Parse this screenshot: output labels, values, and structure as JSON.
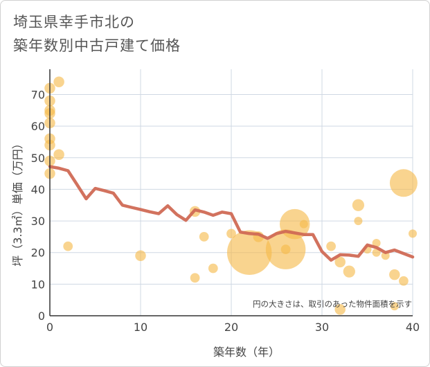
{
  "chart_data": {
    "type": "scatter",
    "title_lines": [
      "埼玉県幸手市北の",
      "築年数別中古戸建て価格"
    ],
    "xlabel": "築年数（年）",
    "ylabel": "坪（3.3㎡）単価（万円）",
    "xlim": [
      0,
      40
    ],
    "ylim": [
      0,
      78
    ],
    "xticks": [
      0,
      10,
      20,
      30,
      40
    ],
    "yticks": [
      0,
      10,
      20,
      30,
      40,
      50,
      60,
      70
    ],
    "grid": true,
    "annotation": "円の大きさは、取引のあった物件面積を示す",
    "colors": {
      "bubble": "#f5b94a",
      "line": "#d06a55",
      "grid": "#cfd8e3"
    },
    "scatter_points": [
      {
        "x": 0,
        "y": 72,
        "size": 3
      },
      {
        "x": 0,
        "y": 68,
        "size": 3
      },
      {
        "x": 0,
        "y": 65,
        "size": 3
      },
      {
        "x": 0,
        "y": 64,
        "size": 3
      },
      {
        "x": 0,
        "y": 61,
        "size": 3
      },
      {
        "x": 0,
        "y": 56,
        "size": 3
      },
      {
        "x": 0,
        "y": 54,
        "size": 3
      },
      {
        "x": 0,
        "y": 49,
        "size": 3
      },
      {
        "x": 0,
        "y": 45,
        "size": 3
      },
      {
        "x": 1,
        "y": 74,
        "size": 3
      },
      {
        "x": 1,
        "y": 51,
        "size": 3
      },
      {
        "x": 2,
        "y": 22,
        "size": 2.5
      },
      {
        "x": 10,
        "y": 19,
        "size": 3
      },
      {
        "x": 16,
        "y": 33,
        "size": 3
      },
      {
        "x": 16,
        "y": 12,
        "size": 2.5
      },
      {
        "x": 17,
        "y": 25,
        "size": 2.5
      },
      {
        "x": 18,
        "y": 15,
        "size": 2.5
      },
      {
        "x": 20,
        "y": 26,
        "size": 2.5
      },
      {
        "x": 22,
        "y": 20,
        "size": 17
      },
      {
        "x": 23,
        "y": 25,
        "size": 3
      },
      {
        "x": 26,
        "y": 21,
        "size": 15
      },
      {
        "x": 26,
        "y": 21,
        "size": 2.5
      },
      {
        "x": 27,
        "y": 29,
        "size": 11
      },
      {
        "x": 28,
        "y": 29,
        "size": 2
      },
      {
        "x": 31,
        "y": 22,
        "size": 2.5
      },
      {
        "x": 32,
        "y": 17,
        "size": 3
      },
      {
        "x": 32,
        "y": 2,
        "size": 3
      },
      {
        "x": 33,
        "y": 14,
        "size": 3.5
      },
      {
        "x": 34,
        "y": 35,
        "size": 3.5
      },
      {
        "x": 34,
        "y": 30,
        "size": 2
      },
      {
        "x": 35,
        "y": 21,
        "size": 2
      },
      {
        "x": 36,
        "y": 23,
        "size": 2
      },
      {
        "x": 36,
        "y": 20,
        "size": 2
      },
      {
        "x": 37,
        "y": 19,
        "size": 2
      },
      {
        "x": 38,
        "y": 13,
        "size": 3
      },
      {
        "x": 38,
        "y": 3,
        "size": 2
      },
      {
        "x": 39,
        "y": 42,
        "size": 10
      },
      {
        "x": 39,
        "y": 11,
        "size": 2.5
      },
      {
        "x": 40,
        "y": 26,
        "size": 2
      }
    ],
    "line_series": {
      "x": [
        0,
        1,
        2,
        3,
        4,
        5,
        6,
        7,
        8,
        9,
        10,
        11,
        12,
        13,
        14,
        15,
        16,
        17,
        18,
        19,
        20,
        21,
        22,
        23,
        24,
        25,
        26,
        27,
        28,
        29,
        30,
        31,
        32,
        33,
        34,
        35,
        36,
        37,
        38,
        39,
        40
      ],
      "y": [
        47.2,
        46.7,
        45.9,
        41.5,
        37.0,
        40.3,
        39.6,
        38.8,
        35.0,
        34.3,
        33.6,
        32.9,
        32.3,
        34.8,
        32.0,
        30.2,
        33.5,
        32.8,
        31.8,
        32.8,
        32.3,
        26.5,
        26.0,
        25.8,
        24.5,
        26.0,
        26.7,
        26.2,
        25.7,
        25.7,
        20.3,
        17.6,
        19.3,
        19.2,
        18.8,
        22.4,
        21.6,
        20.0,
        20.8,
        19.7,
        18.6
      ]
    }
  }
}
